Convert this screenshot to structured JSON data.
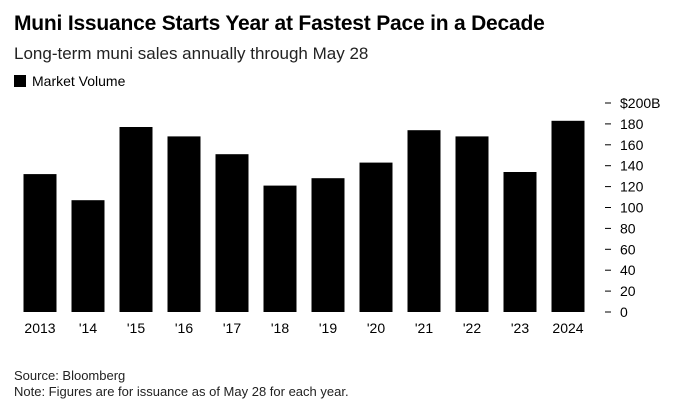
{
  "chart_data": {
    "type": "bar",
    "title": "Muni Issuance Starts Year at Fastest Pace in a Decade",
    "subtitle": "Long-term muni sales annually through May 28",
    "legend": [
      {
        "name": "Market Volume",
        "color": "#000000"
      }
    ],
    "categories": [
      "2013",
      "'14",
      "'15",
      "'16",
      "'17",
      "'18",
      "'19",
      "'20",
      "'21",
      "'22",
      "'23",
      "2024"
    ],
    "series": [
      {
        "name": "Market Volume",
        "values": [
          132,
          107,
          177,
          168,
          151,
          121,
          128,
          143,
          174,
          168,
          134,
          183
        ]
      }
    ],
    "yticks": [
      "0",
      "20",
      "40",
      "60",
      "80",
      "100",
      "120",
      "140",
      "160",
      "180",
      "$200B"
    ],
    "ytick_values": [
      0,
      20,
      40,
      60,
      80,
      100,
      120,
      140,
      160,
      180,
      200
    ],
    "ylim": [
      0,
      200
    ],
    "xlabel": "",
    "ylabel": "",
    "y_axis_position": "right",
    "grid": false,
    "bar_color": "#000000"
  },
  "footer": {
    "source": "Source: Bloomberg",
    "note": "Note: Figures are for issuance as of May 28 for each year."
  }
}
